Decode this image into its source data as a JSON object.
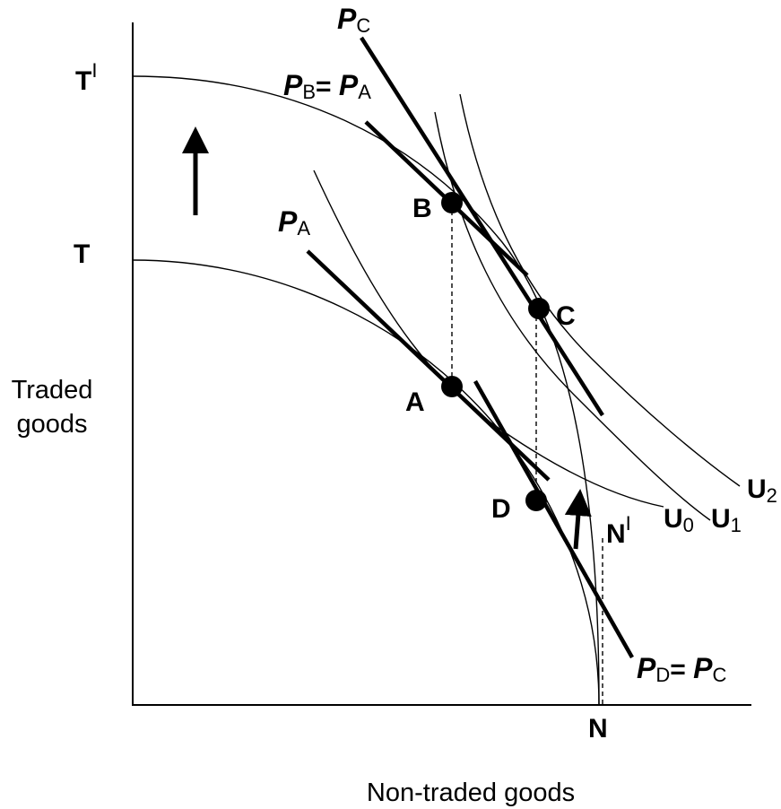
{
  "axes": {
    "y_label": [
      "Traded",
      "goods"
    ],
    "x_label": "Non-traded goods"
  },
  "intercepts": {
    "t_prime": [
      "T",
      "I"
    ],
    "t": "T",
    "n": "N",
    "n_prime": [
      "N",
      "I"
    ]
  },
  "points": {
    "b": "B",
    "c": "C",
    "a": "A",
    "d": "D"
  },
  "utility": {
    "u0": [
      "U",
      "0"
    ],
    "u1": [
      "U",
      "1"
    ],
    "u2": [
      "U",
      "2"
    ]
  },
  "prices": {
    "pc": [
      "P",
      "C"
    ],
    "pb_pa": [
      "P",
      "B",
      "= ",
      "P",
      "A"
    ],
    "pa": [
      "P",
      "A"
    ],
    "pd_pc": [
      "P",
      "D",
      "= ",
      "P",
      "C"
    ]
  }
}
